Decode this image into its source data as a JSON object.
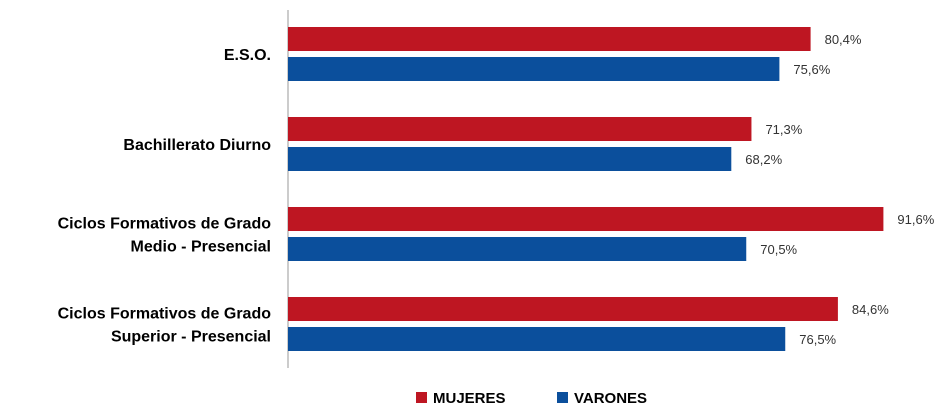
{
  "chart_data": {
    "type": "bar",
    "orientation": "horizontal",
    "categories": [
      [
        "E.S.O."
      ],
      [
        "Bachillerato Diurno"
      ],
      [
        "Ciclos Formativos de Grado",
        "Medio - Presencial"
      ],
      [
        "Ciclos Formativos de Grado",
        "Superior - Presencial"
      ]
    ],
    "series": [
      {
        "name": "MUJERES",
        "color": "#be1622",
        "values": [
          80.4,
          71.3,
          91.6,
          84.6
        ],
        "labels": [
          "80,4%",
          "71,3%",
          "91,6%",
          "84,6%"
        ]
      },
      {
        "name": "VARONES",
        "color": "#0b4f9c",
        "values": [
          75.6,
          68.2,
          70.5,
          76.5
        ],
        "labels": [
          "75,6%",
          "68,2%",
          "70,5%",
          "76,5%"
        ]
      }
    ],
    "xlim": [
      0,
      100
    ],
    "grid": false,
    "legend_position": "bottom-center"
  }
}
